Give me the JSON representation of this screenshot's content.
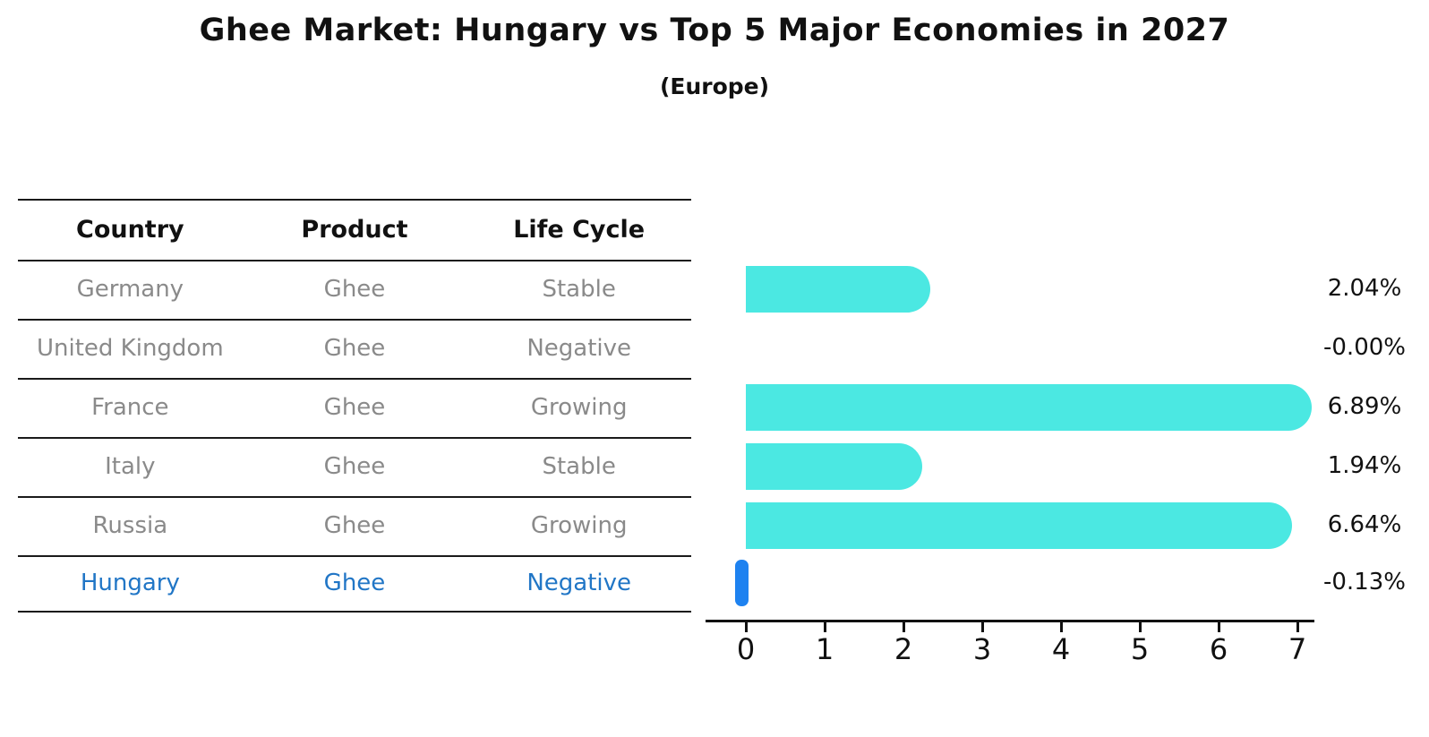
{
  "title": "Ghee Market: Hungary vs Top 5 Major Economies in 2027",
  "subtitle": "(Europe)",
  "colors": {
    "bar_cyan": "#4BE8E2",
    "bar_blue": "#1E82F0",
    "highlight_text": "#2176C6",
    "row_text": "#8A8A8A",
    "header_text": "#111111",
    "axis": "#111111"
  },
  "table": {
    "headers": [
      "Country",
      "Product",
      "Life Cycle"
    ],
    "rows": [
      {
        "country": "Germany",
        "product": "Ghee",
        "life_cycle": "Stable",
        "highlighted": false
      },
      {
        "country": "United Kingdom",
        "product": "Ghee",
        "life_cycle": "Negative",
        "highlighted": false
      },
      {
        "country": "France",
        "product": "Ghee",
        "life_cycle": "Growing",
        "highlighted": false
      },
      {
        "country": "Italy",
        "product": "Ghee",
        "life_cycle": "Stable",
        "highlighted": false
      },
      {
        "country": "Russia",
        "product": "Ghee",
        "life_cycle": "Growing",
        "highlighted": false
      },
      {
        "country": "Hungary",
        "product": "Ghee",
        "life_cycle": "Negative",
        "highlighted": true
      }
    ]
  },
  "chart_data": {
    "type": "bar",
    "orientation": "horizontal",
    "title": "Ghee Market: Hungary vs Top 5 Major Economies in 2027",
    "subtitle": "(Europe)",
    "categories": [
      "Germany",
      "United Kingdom",
      "France",
      "Italy",
      "Russia",
      "Hungary"
    ],
    "values": [
      2.04,
      0.0,
      6.89,
      1.94,
      6.64,
      -0.13
    ],
    "value_labels": [
      "2.04%",
      "-0.00%",
      "6.89%",
      "1.94%",
      "6.64%",
      "-0.13%"
    ],
    "xlabel": "",
    "ylabel": "",
    "xlim": [
      0,
      7
    ],
    "xticks": [
      0,
      1,
      2,
      3,
      4,
      5,
      6,
      7
    ],
    "highlight_category": "Hungary",
    "grid": false,
    "legend": false
  }
}
